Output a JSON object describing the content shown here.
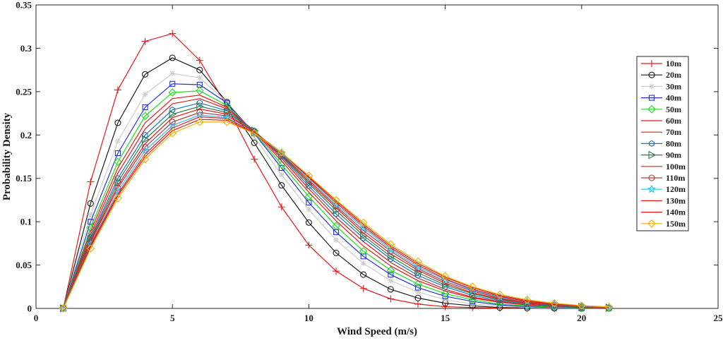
{
  "chart_data": {
    "type": "line",
    "xlabel": "Wind Speed (m/s)",
    "ylabel": "Probability Density",
    "xlim": [
      0,
      25
    ],
    "ylim": [
      0,
      0.35
    ],
    "xticks": [
      0,
      5,
      10,
      15,
      20,
      25
    ],
    "xtick_labels": [
      "0",
      "5",
      "10",
      "15",
      "20",
      "25"
    ],
    "yticks": [
      0,
      0.05,
      0.1,
      0.15,
      0.2,
      0.25,
      0.3,
      0.35
    ],
    "ytick_labels": [
      "0",
      "0.05",
      "0.1",
      "0.15",
      "0.2",
      "0.25",
      "0.3",
      "0.35"
    ],
    "grid": false,
    "legend_position": "right",
    "x": [
      1,
      2,
      3,
      4,
      5,
      6,
      7,
      8,
      9,
      10,
      11,
      12,
      13,
      14,
      15,
      16,
      17,
      18,
      19,
      20,
      21
    ],
    "series": [
      {
        "name": "10m",
        "color": "#e41a1c",
        "marker": "plus",
        "values": [
          0,
          0.146,
          0.252,
          0.308,
          0.317,
          0.286,
          0.233,
          0.172,
          0.117,
          0.073,
          0.043,
          0.023,
          0.011,
          0.005,
          0.002,
          0.001,
          0.0003,
          0.0001,
          0,
          0,
          0
        ]
      },
      {
        "name": "20m",
        "color": "#1a1a1a",
        "marker": "circle",
        "values": [
          0,
          0.121,
          0.214,
          0.27,
          0.289,
          0.275,
          0.238,
          0.191,
          0.142,
          0.099,
          0.064,
          0.039,
          0.022,
          0.012,
          0.006,
          0.003,
          0.001,
          0.0005,
          0.0002,
          0,
          0
        ]
      },
      {
        "name": "30m",
        "color": "#cccccc",
        "marker": "star",
        "values": [
          0,
          0.108,
          0.193,
          0.247,
          0.271,
          0.266,
          0.238,
          0.198,
          0.154,
          0.114,
          0.079,
          0.052,
          0.032,
          0.019,
          0.01,
          0.005,
          0.003,
          0.001,
          0.0006,
          0.0002,
          0.0001
        ]
      },
      {
        "name": "40m",
        "color": "#2233dd",
        "marker": "square",
        "values": [
          0,
          0.1,
          0.179,
          0.232,
          0.259,
          0.258,
          0.237,
          0.202,
          0.162,
          0.122,
          0.088,
          0.06,
          0.039,
          0.024,
          0.014,
          0.008,
          0.004,
          0.002,
          0.001,
          0.0004,
          0.0002
        ]
      },
      {
        "name": "50m",
        "color": "#22dd22",
        "marker": "diamond",
        "values": [
          0,
          0.093,
          0.169,
          0.222,
          0.249,
          0.251,
          0.234,
          0.203,
          0.166,
          0.129,
          0.095,
          0.066,
          0.044,
          0.028,
          0.017,
          0.01,
          0.005,
          0.003,
          0.0014,
          0.0007,
          0.0003
        ]
      },
      {
        "name": "60m",
        "color": "#e41a1c",
        "marker": "none",
        "values": [
          0,
          0.089,
          0.162,
          0.214,
          0.242,
          0.246,
          0.232,
          0.204,
          0.17,
          0.134,
          0.101,
          0.072,
          0.049,
          0.032,
          0.02,
          0.012,
          0.007,
          0.004,
          0.002,
          0.001,
          0.0004
        ]
      },
      {
        "name": "70m",
        "color": "#e41a1c",
        "marker": "none",
        "values": [
          0,
          0.085,
          0.156,
          0.207,
          0.236,
          0.242,
          0.23,
          0.205,
          0.173,
          0.138,
          0.105,
          0.077,
          0.053,
          0.035,
          0.022,
          0.013,
          0.008,
          0.004,
          0.002,
          0.001,
          0.0005
        ]
      },
      {
        "name": "80m",
        "color": "#1f77b4",
        "marker": "hexagon",
        "values": [
          0,
          0.082,
          0.15,
          0.2,
          0.229,
          0.237,
          0.228,
          0.205,
          0.175,
          0.141,
          0.109,
          0.081,
          0.057,
          0.038,
          0.025,
          0.015,
          0.009,
          0.005,
          0.003,
          0.0014,
          0.0007
        ]
      },
      {
        "name": "90m",
        "color": "#2e7d4f",
        "marker": "triangle-right",
        "values": [
          0,
          0.08,
          0.146,
          0.195,
          0.224,
          0.233,
          0.226,
          0.205,
          0.176,
          0.144,
          0.113,
          0.084,
          0.06,
          0.041,
          0.027,
          0.017,
          0.01,
          0.006,
          0.003,
          0.0016,
          0.0008
        ]
      },
      {
        "name": "100m",
        "color": "#e41a1c",
        "marker": "none",
        "values": [
          0,
          0.078,
          0.142,
          0.19,
          0.22,
          0.23,
          0.224,
          0.204,
          0.177,
          0.146,
          0.116,
          0.087,
          0.063,
          0.044,
          0.029,
          0.018,
          0.011,
          0.006,
          0.004,
          0.002,
          0.0009
        ]
      },
      {
        "name": "110m",
        "color": "#b03a3a",
        "marker": "circle",
        "values": [
          0,
          0.076,
          0.139,
          0.186,
          0.215,
          0.226,
          0.222,
          0.204,
          0.178,
          0.148,
          0.118,
          0.09,
          0.066,
          0.046,
          0.031,
          0.02,
          0.012,
          0.007,
          0.004,
          0.002,
          0.001
        ]
      },
      {
        "name": "120m",
        "color": "#33bbee",
        "marker": "pentagram",
        "values": [
          0,
          0.074,
          0.135,
          0.182,
          0.211,
          0.223,
          0.22,
          0.203,
          0.179,
          0.15,
          0.12,
          0.093,
          0.068,
          0.048,
          0.033,
          0.021,
          0.013,
          0.008,
          0.005,
          0.0025,
          0.0012
        ]
      },
      {
        "name": "130m",
        "color": "#e41a1c",
        "marker": "none",
        "values": [
          0,
          0.073,
          0.132,
          0.178,
          0.208,
          0.221,
          0.219,
          0.203,
          0.18,
          0.151,
          0.122,
          0.095,
          0.07,
          0.05,
          0.034,
          0.022,
          0.014,
          0.008,
          0.005,
          0.003,
          0.0013
        ]
      },
      {
        "name": "140m",
        "color": "#e41a1c",
        "marker": "none",
        "values": [
          0,
          0.071,
          0.13,
          0.175,
          0.205,
          0.218,
          0.217,
          0.202,
          0.18,
          0.152,
          0.124,
          0.097,
          0.072,
          0.052,
          0.036,
          0.024,
          0.015,
          0.009,
          0.005,
          0.003,
          0.0015
        ]
      },
      {
        "name": "150m",
        "color": "#f0b000",
        "marker": "diamond",
        "values": [
          0,
          0.069,
          0.127,
          0.172,
          0.202,
          0.215,
          0.215,
          0.202,
          0.18,
          0.153,
          0.125,
          0.099,
          0.074,
          0.054,
          0.037,
          0.025,
          0.016,
          0.01,
          0.006,
          0.0033,
          0.0017
        ]
      }
    ]
  }
}
